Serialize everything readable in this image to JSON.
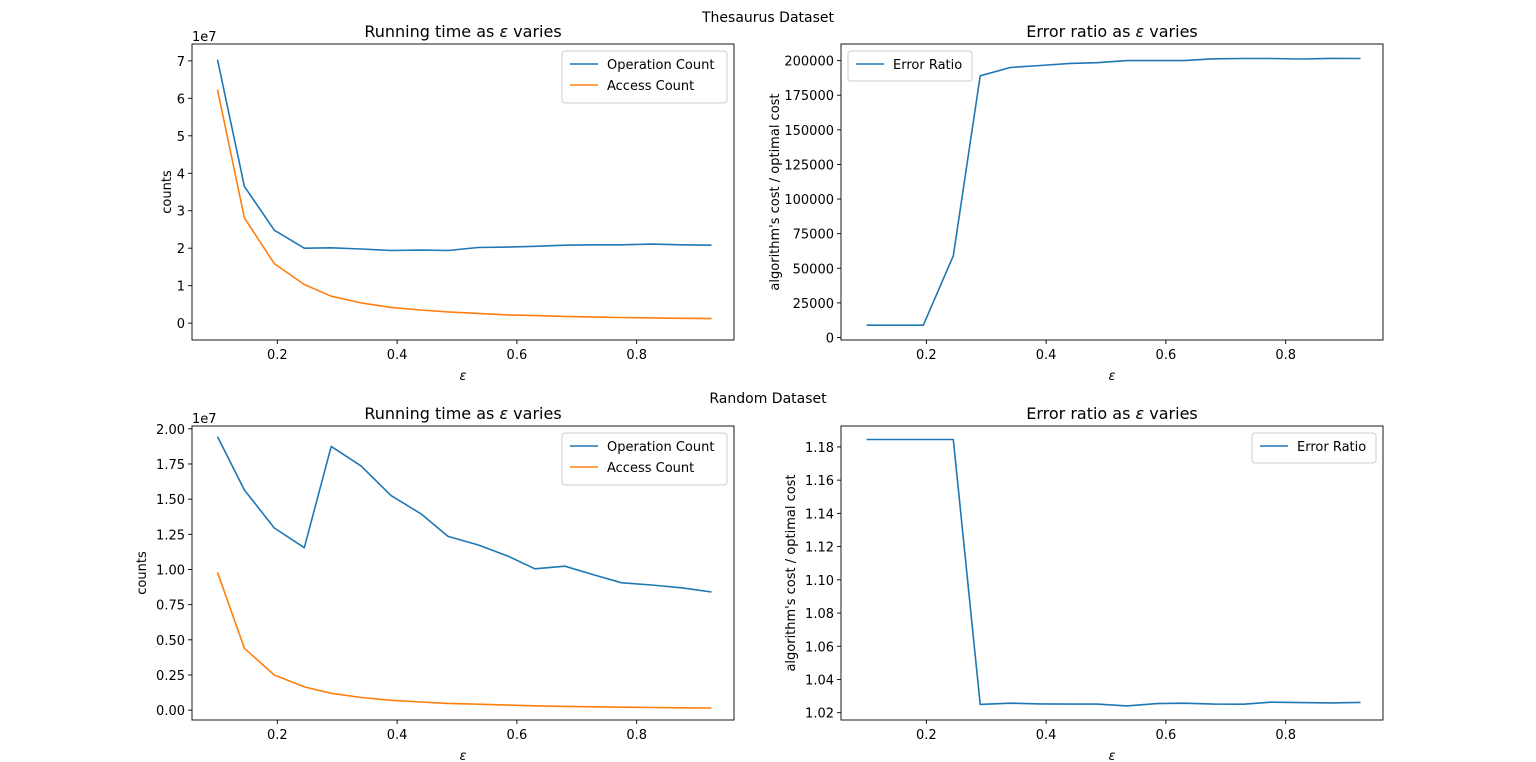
{
  "figure": {
    "section_titles": [
      "Thesaurus Dataset",
      "Random Dataset"
    ]
  },
  "chart_data": [
    {
      "type": "line",
      "group": "Thesaurus Dataset",
      "title": "Running time as ε varies",
      "xlabel": "ε",
      "ylabel": "counts",
      "y_offset_label": "1e7",
      "xlim": [
        0.0575,
        0.9625
      ],
      "ylim": [
        -4.5,
        74.5
      ],
      "y_scale": 10000000.0,
      "xticks": [
        0.2,
        0.4,
        0.6,
        0.8
      ],
      "xtick_labels": [
        "0.2",
        "0.4",
        "0.6",
        "0.8"
      ],
      "yticks": [
        0,
        10,
        20,
        30,
        40,
        50,
        60,
        70
      ],
      "ytick_labels": [
        "0",
        "1",
        "2",
        "3",
        "4",
        "5",
        "6",
        "7"
      ],
      "legend_position": "upper right",
      "x": [
        0.1,
        0.145,
        0.195,
        0.245,
        0.29,
        0.34,
        0.39,
        0.44,
        0.485,
        0.535,
        0.585,
        0.63,
        0.68,
        0.73,
        0.775,
        0.825,
        0.875,
        0.925
      ],
      "series": [
        {
          "name": "Operation Count",
          "color": "#1f77b4",
          "values": [
            70.3,
            36.5,
            24.8,
            20.0,
            20.1,
            19.8,
            19.4,
            19.5,
            19.4,
            20.2,
            20.3,
            20.5,
            20.8,
            20.9,
            20.9,
            21.1,
            20.9,
            20.8
          ]
        },
        {
          "name": "Access Count",
          "color": "#ff7f0e",
          "values": [
            62.3,
            28.1,
            15.9,
            10.3,
            7.2,
            5.4,
            4.2,
            3.5,
            3.0,
            2.6,
            2.2,
            2.0,
            1.8,
            1.6,
            1.5,
            1.4,
            1.3,
            1.2
          ]
        }
      ]
    },
    {
      "type": "line",
      "group": "Thesaurus Dataset",
      "title": "Error ratio as ε varies",
      "xlabel": "ε",
      "ylabel": "algorithm's cost / optimal cost",
      "y_offset_label": "",
      "xlim": [
        0.0575,
        0.9625
      ],
      "ylim": [
        -1800,
        212000
      ],
      "y_scale": 1,
      "xticks": [
        0.2,
        0.4,
        0.6,
        0.8
      ],
      "xtick_labels": [
        "0.2",
        "0.4",
        "0.6",
        "0.8"
      ],
      "yticks": [
        0,
        25000,
        50000,
        75000,
        100000,
        125000,
        150000,
        175000,
        200000
      ],
      "ytick_labels": [
        "0",
        "25000",
        "50000",
        "75000",
        "100000",
        "125000",
        "150000",
        "175000",
        "200000"
      ],
      "legend_position": "upper left",
      "x": [
        0.1,
        0.145,
        0.195,
        0.245,
        0.29,
        0.34,
        0.39,
        0.44,
        0.485,
        0.535,
        0.585,
        0.63,
        0.68,
        0.73,
        0.775,
        0.825,
        0.875,
        0.925
      ],
      "series": [
        {
          "name": "Error Ratio",
          "color": "#1f77b4",
          "values": [
            8900,
            8900,
            8900,
            59000,
            189000,
            195000,
            196500,
            198000,
            198500,
            200000,
            200000,
            200000,
            201300,
            201500,
            201500,
            201200,
            201600,
            201500
          ]
        }
      ]
    },
    {
      "type": "line",
      "group": "Random Dataset",
      "title": "Running time as ε varies",
      "xlabel": "ε",
      "ylabel": "counts",
      "y_offset_label": "1e7",
      "xlim": [
        0.0575,
        0.9625
      ],
      "ylim": [
        -0.07,
        2.02
      ],
      "y_scale": 10000000.0,
      "xticks": [
        0.2,
        0.4,
        0.6,
        0.8
      ],
      "xtick_labels": [
        "0.2",
        "0.4",
        "0.6",
        "0.8"
      ],
      "yticks": [
        0,
        0.25,
        0.5,
        0.75,
        1.0,
        1.25,
        1.5,
        1.75,
        2.0
      ],
      "ytick_labels": [
        "0.00",
        "0.25",
        "0.50",
        "0.75",
        "1.00",
        "1.25",
        "1.50",
        "1.75",
        "2.00"
      ],
      "legend_position": "upper right",
      "x": [
        0.1,
        0.145,
        0.195,
        0.245,
        0.29,
        0.34,
        0.39,
        0.44,
        0.485,
        0.535,
        0.585,
        0.63,
        0.68,
        0.73,
        0.775,
        0.825,
        0.875,
        0.925
      ],
      "series": [
        {
          "name": "Operation Count",
          "color": "#1f77b4",
          "values": [
            1.945,
            1.565,
            1.295,
            1.155,
            1.875,
            1.735,
            1.525,
            1.395,
            1.235,
            1.175,
            1.095,
            1.005,
            1.023,
            0.96,
            0.905,
            0.89,
            0.87,
            0.84
          ]
        },
        {
          "name": "Access Count",
          "color": "#ff7f0e",
          "values": [
            0.98,
            0.44,
            0.25,
            0.165,
            0.12,
            0.09,
            0.07,
            0.058,
            0.048,
            0.042,
            0.036,
            0.031,
            0.027,
            0.024,
            0.021,
            0.019,
            0.017,
            0.015
          ]
        }
      ]
    },
    {
      "type": "line",
      "group": "Random Dataset",
      "title": "Error ratio as ε varies",
      "xlabel": "ε",
      "ylabel": "algorithm's cost / optimal cost",
      "y_offset_label": "",
      "xlim": [
        0.0575,
        0.9625
      ],
      "ylim": [
        1.0156,
        1.1926
      ],
      "y_scale": 1,
      "xticks": [
        0.2,
        0.4,
        0.6,
        0.8
      ],
      "xtick_labels": [
        "0.2",
        "0.4",
        "0.6",
        "0.8"
      ],
      "yticks": [
        1.02,
        1.04,
        1.06,
        1.08,
        1.1,
        1.12,
        1.14,
        1.16,
        1.18
      ],
      "ytick_labels": [
        "1.02",
        "1.04",
        "1.06",
        "1.08",
        "1.10",
        "1.12",
        "1.14",
        "1.16",
        "1.18"
      ],
      "legend_position": "upper right",
      "x": [
        0.1,
        0.145,
        0.195,
        0.245,
        0.29,
        0.34,
        0.39,
        0.44,
        0.485,
        0.535,
        0.585,
        0.63,
        0.68,
        0.73,
        0.775,
        0.825,
        0.875,
        0.925
      ],
      "series": [
        {
          "name": "Error Ratio",
          "color": "#1f77b4",
          "values": [
            1.1845,
            1.1845,
            1.1845,
            1.1845,
            1.025,
            1.0257,
            1.0253,
            1.0252,
            1.0252,
            1.0241,
            1.0255,
            1.0257,
            1.0252,
            1.0251,
            1.0263,
            1.0261,
            1.0259,
            1.0262
          ]
        }
      ]
    }
  ]
}
